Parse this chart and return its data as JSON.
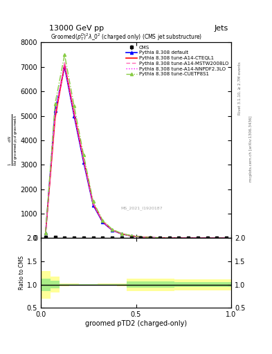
{
  "title_top": "13000 GeV pp",
  "title_right": "Jets",
  "title_inner": "Groomed$(p_T^D)^2\\lambda\\_0^2$ (charged only) (CMS jet substructure)",
  "right_label_top": "Rivet 3.1.10, ≥ 2.7M events",
  "right_label_bottom": "mcplots.cern.ch [arXiv:1306.3436]",
  "watermark": "MS_2021_I1920187",
  "xlabel": "groomed pTD2 (charged-only)",
  "ylabel_ratio": "Ratio to CMS",
  "ylim_main": [
    0,
    8000
  ],
  "ylim_ratio": [
    0.5,
    2.0
  ],
  "xlim": [
    0.0,
    1.0
  ],
  "x_data": [
    0.025,
    0.075,
    0.125,
    0.175,
    0.225,
    0.275,
    0.325,
    0.375,
    0.425,
    0.475,
    0.525,
    0.575,
    0.625,
    0.675,
    0.725,
    0.775,
    0.825,
    0.875,
    0.925,
    0.975
  ],
  "cms_data": [
    30,
    30,
    25,
    20,
    15,
    10,
    8,
    6,
    5,
    4,
    3,
    3,
    2,
    2,
    2,
    2,
    1,
    1,
    1,
    1
  ],
  "cms_err": [
    5,
    5,
    4,
    3,
    2,
    2,
    1,
    1,
    1,
    1,
    1,
    1,
    1,
    1,
    1,
    1,
    1,
    1,
    1,
    1
  ],
  "pythia_default_data": [
    200,
    5200,
    7000,
    5000,
    3100,
    1350,
    650,
    320,
    170,
    90,
    45,
    25,
    13,
    7,
    4,
    2,
    1,
    1,
    0.5,
    0.2
  ],
  "pythia_cteql1_data": [
    180,
    4900,
    7100,
    5100,
    3200,
    1400,
    680,
    330,
    175,
    92,
    46,
    26,
    13,
    7,
    4,
    2,
    1,
    1,
    0.5,
    0.2
  ],
  "pythia_mstw_data": [
    190,
    5100,
    7200,
    5200,
    3250,
    1420,
    690,
    335,
    178,
    93,
    47,
    27,
    13,
    7,
    4,
    2,
    1,
    1,
    0.5,
    0.2
  ],
  "pythia_nnpdf_data": [
    185,
    5000,
    7050,
    5050,
    3150,
    1380,
    665,
    325,
    172,
    91,
    46,
    26,
    13,
    7,
    4,
    2,
    1,
    1,
    0.5,
    0.2
  ],
  "pythia_cuetp_data": [
    210,
    5500,
    7500,
    5400,
    3400,
    1500,
    730,
    360,
    190,
    100,
    50,
    28,
    14,
    8,
    5,
    3,
    1,
    1,
    0.5,
    0.2
  ],
  "ratio_yellow_lo": [
    0.7,
    0.83,
    0.97,
    0.98,
    0.99,
    0.99,
    0.98,
    0.98,
    0.97,
    0.87,
    0.87,
    0.87,
    0.87,
    0.87,
    0.88,
    0.88,
    0.88,
    0.88,
    0.88,
    0.88
  ],
  "ratio_yellow_hi": [
    1.3,
    1.17,
    1.03,
    1.02,
    1.01,
    1.01,
    1.02,
    1.02,
    1.03,
    1.13,
    1.13,
    1.13,
    1.13,
    1.13,
    1.12,
    1.12,
    1.12,
    1.12,
    1.12,
    1.12
  ],
  "ratio_green_lo": [
    0.87,
    0.92,
    0.99,
    0.99,
    0.995,
    0.995,
    0.99,
    0.99,
    0.99,
    0.93,
    0.93,
    0.93,
    0.93,
    0.93,
    0.95,
    0.95,
    0.95,
    0.95,
    0.95,
    0.95
  ],
  "ratio_green_hi": [
    1.13,
    1.08,
    1.01,
    1.01,
    1.005,
    1.005,
    1.01,
    1.01,
    1.01,
    1.07,
    1.07,
    1.07,
    1.07,
    1.07,
    1.05,
    1.05,
    1.05,
    1.05,
    1.05,
    1.05
  ],
  "color_cms": "black",
  "color_default": "blue",
  "color_cteql1": "red",
  "color_mstw": "#ff69b4",
  "color_nnpdf": "#ff00ff",
  "color_cuetp": "#88cc44",
  "color_yellow": "#ffff99",
  "color_green": "#aaee88",
  "yticks_main": [
    0,
    1000,
    2000,
    3000,
    4000,
    5000,
    6000,
    7000,
    8000
  ],
  "yticks_ratio": [
    0.5,
    1.0,
    1.5,
    2.0
  ],
  "xticks": [
    0.0,
    0.5,
    1.0
  ]
}
